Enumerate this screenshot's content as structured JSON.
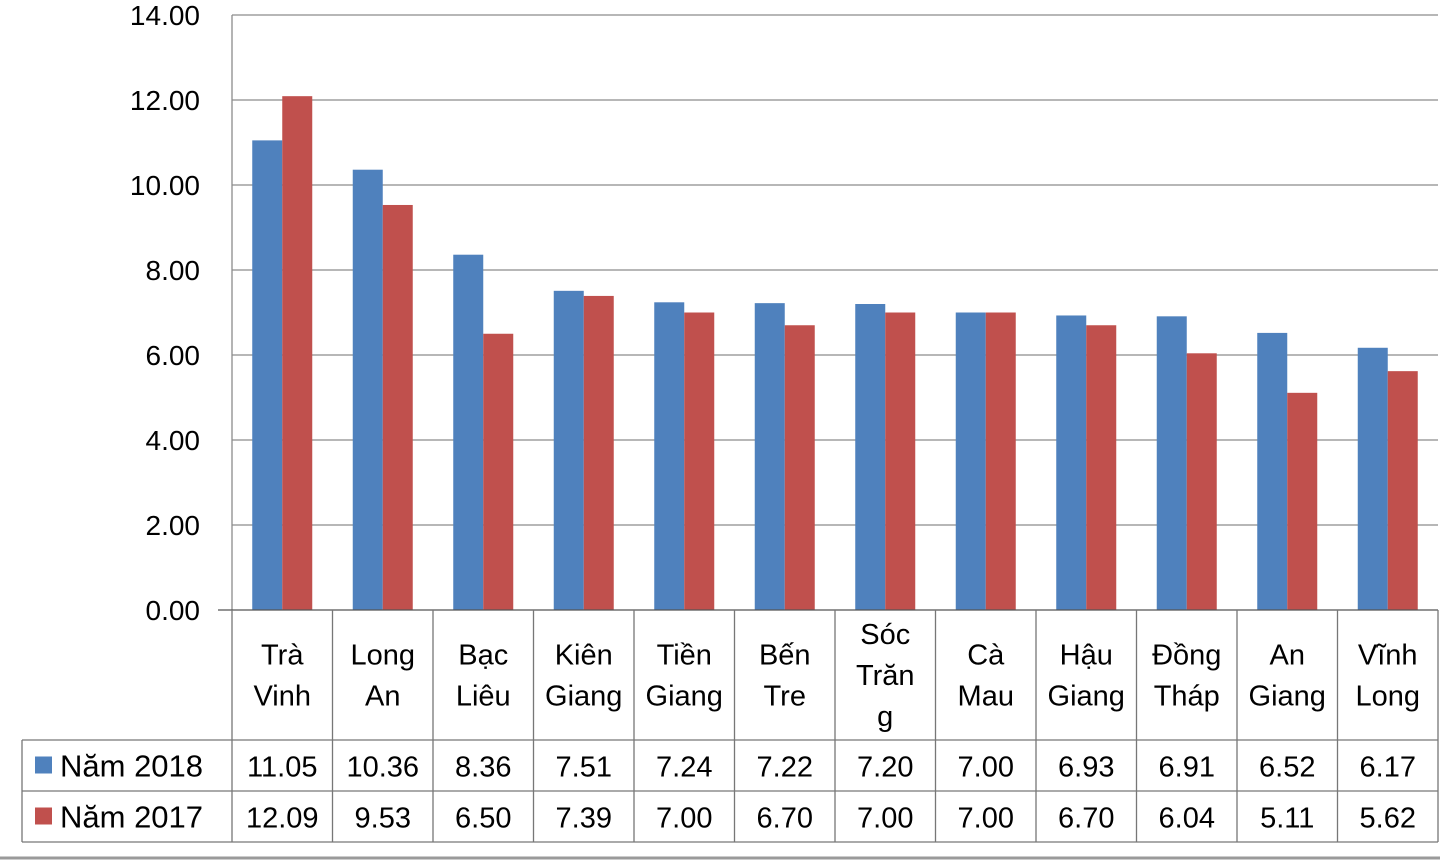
{
  "chart_data": {
    "type": "bar",
    "title": "",
    "xlabel": "",
    "ylabel": "",
    "ylim": [
      0,
      14
    ],
    "yticks": [
      "0.00",
      "2.00",
      "4.00",
      "6.00",
      "8.00",
      "10.00",
      "12.00",
      "14.00"
    ],
    "grid": true,
    "legend": "in data table, left",
    "categories": [
      [
        "Trà",
        "Vinh"
      ],
      [
        "Long",
        "An"
      ],
      [
        "Bạc",
        "Liêu"
      ],
      [
        "Kiên",
        "Giang"
      ],
      [
        "Tiền",
        "Giang"
      ],
      [
        "Bến",
        "Tre"
      ],
      [
        "Sóc",
        "Trăn",
        "g"
      ],
      [
        "Cà",
        "Mau"
      ],
      [
        "Hậu",
        "Giang"
      ],
      [
        "Đồng",
        "Tháp"
      ],
      [
        "An",
        "Giang"
      ],
      [
        "Vĩnh",
        "Long"
      ]
    ],
    "series": [
      {
        "name": "Năm 2018",
        "color": "#4F81BD",
        "values": [
          11.05,
          10.36,
          8.36,
          7.51,
          7.24,
          7.22,
          7.2,
          7.0,
          6.93,
          6.91,
          6.52,
          6.17
        ],
        "labels": [
          "11.05",
          "10.36",
          "8.36",
          "7.51",
          "7.24",
          "7.22",
          "7.20",
          "7.00",
          "6.93",
          "6.91",
          "6.52",
          "6.17"
        ]
      },
      {
        "name": "Năm 2017",
        "color": "#C0504D",
        "values": [
          12.09,
          9.53,
          6.5,
          7.39,
          7.0,
          6.7,
          7.0,
          7.0,
          6.7,
          6.04,
          5.11,
          5.62
        ],
        "labels": [
          "12.09",
          "9.53",
          "6.50",
          "7.39",
          "7.00",
          "6.70",
          "7.00",
          "7.00",
          "6.70",
          "6.04",
          "5.11",
          "5.62"
        ]
      }
    ]
  }
}
